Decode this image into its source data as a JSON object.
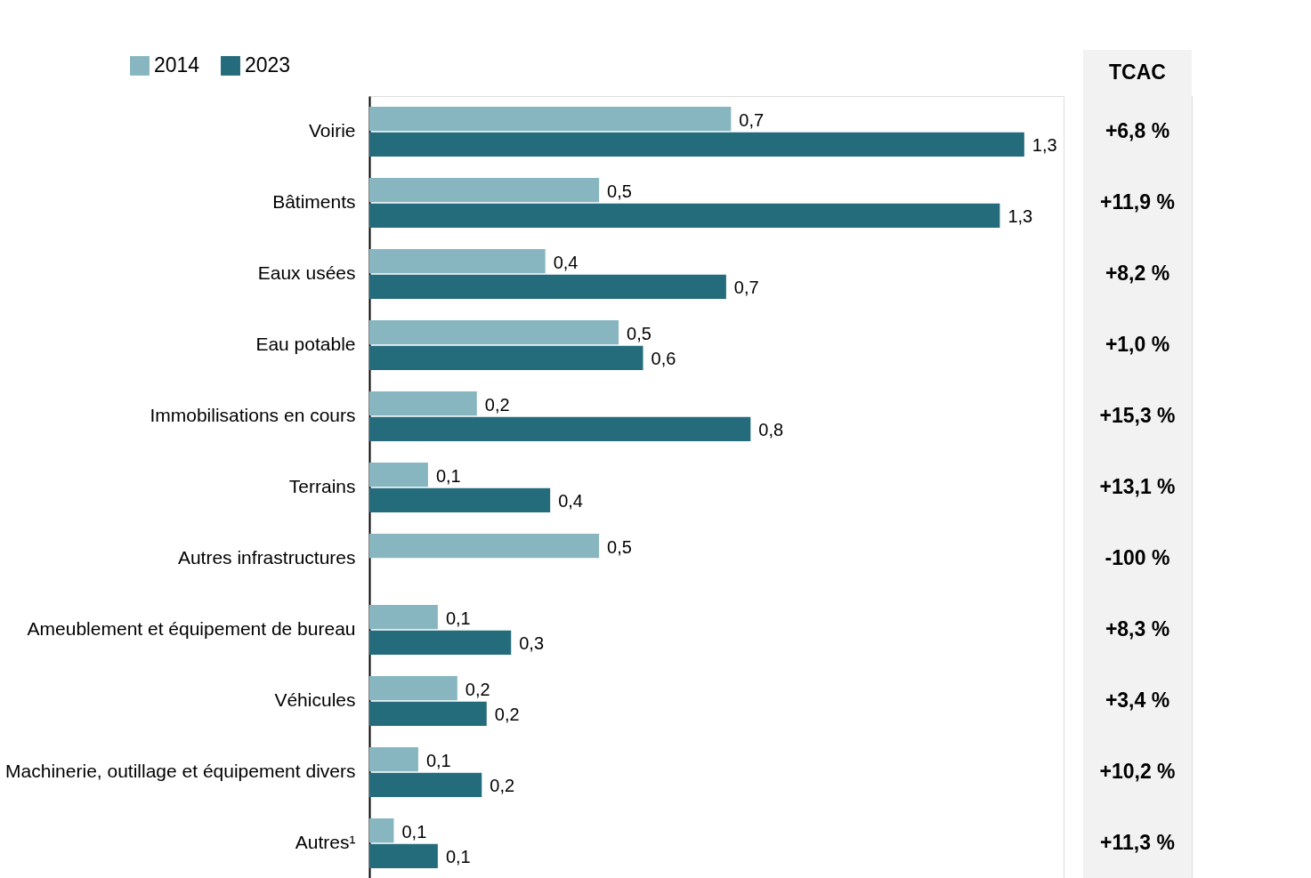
{
  "chart_data": {
    "type": "bar",
    "orientation": "horizontal",
    "legend": "top left",
    "tick_labels": "y",
    "categories": [
      "Voirie",
      "Bâtiments",
      "Eaux usées",
      "Eau potable",
      "Immobilisations en cours",
      "Terrains",
      "Autres infrastructures",
      "Ameublement et équipement de bureau",
      "Véhicules",
      "Machinerie, outillage et équipement divers",
      "Autres¹"
    ],
    "series": [
      {
        "name": "2014",
        "color": "#87b6c1",
        "values": [
          0.74,
          0.47,
          0.36,
          0.51,
          0.22,
          0.12,
          0.47,
          0.14,
          0.18,
          0.1,
          0.05
        ],
        "value_labels": [
          "0,7",
          "0,5",
          "0,4",
          "0,5",
          "0,2",
          "0,1",
          "0,5",
          "0,1",
          "0,2",
          "0,1",
          "0,1"
        ]
      },
      {
        "name": "2023",
        "color": "#246b7b",
        "values": [
          1.34,
          1.29,
          0.73,
          0.56,
          0.78,
          0.37,
          null,
          0.29,
          0.24,
          0.23,
          0.14
        ],
        "value_labels": [
          "1,3",
          "1,3",
          "0,7",
          "0,6",
          "0,8",
          "0,4",
          null,
          "0,3",
          "0,2",
          "0,2",
          "0,1"
        ]
      }
    ],
    "annotations": [
      "TCAC",
      "+6,8 %",
      "+11,9 %",
      "+8,2 %",
      "+1,0 %",
      "+15,3 %",
      "+13,1 %",
      "-100 %",
      "+8,3 %",
      "+3,4 %",
      "+10,2 %",
      "+11,3 %"
    ]
  }
}
